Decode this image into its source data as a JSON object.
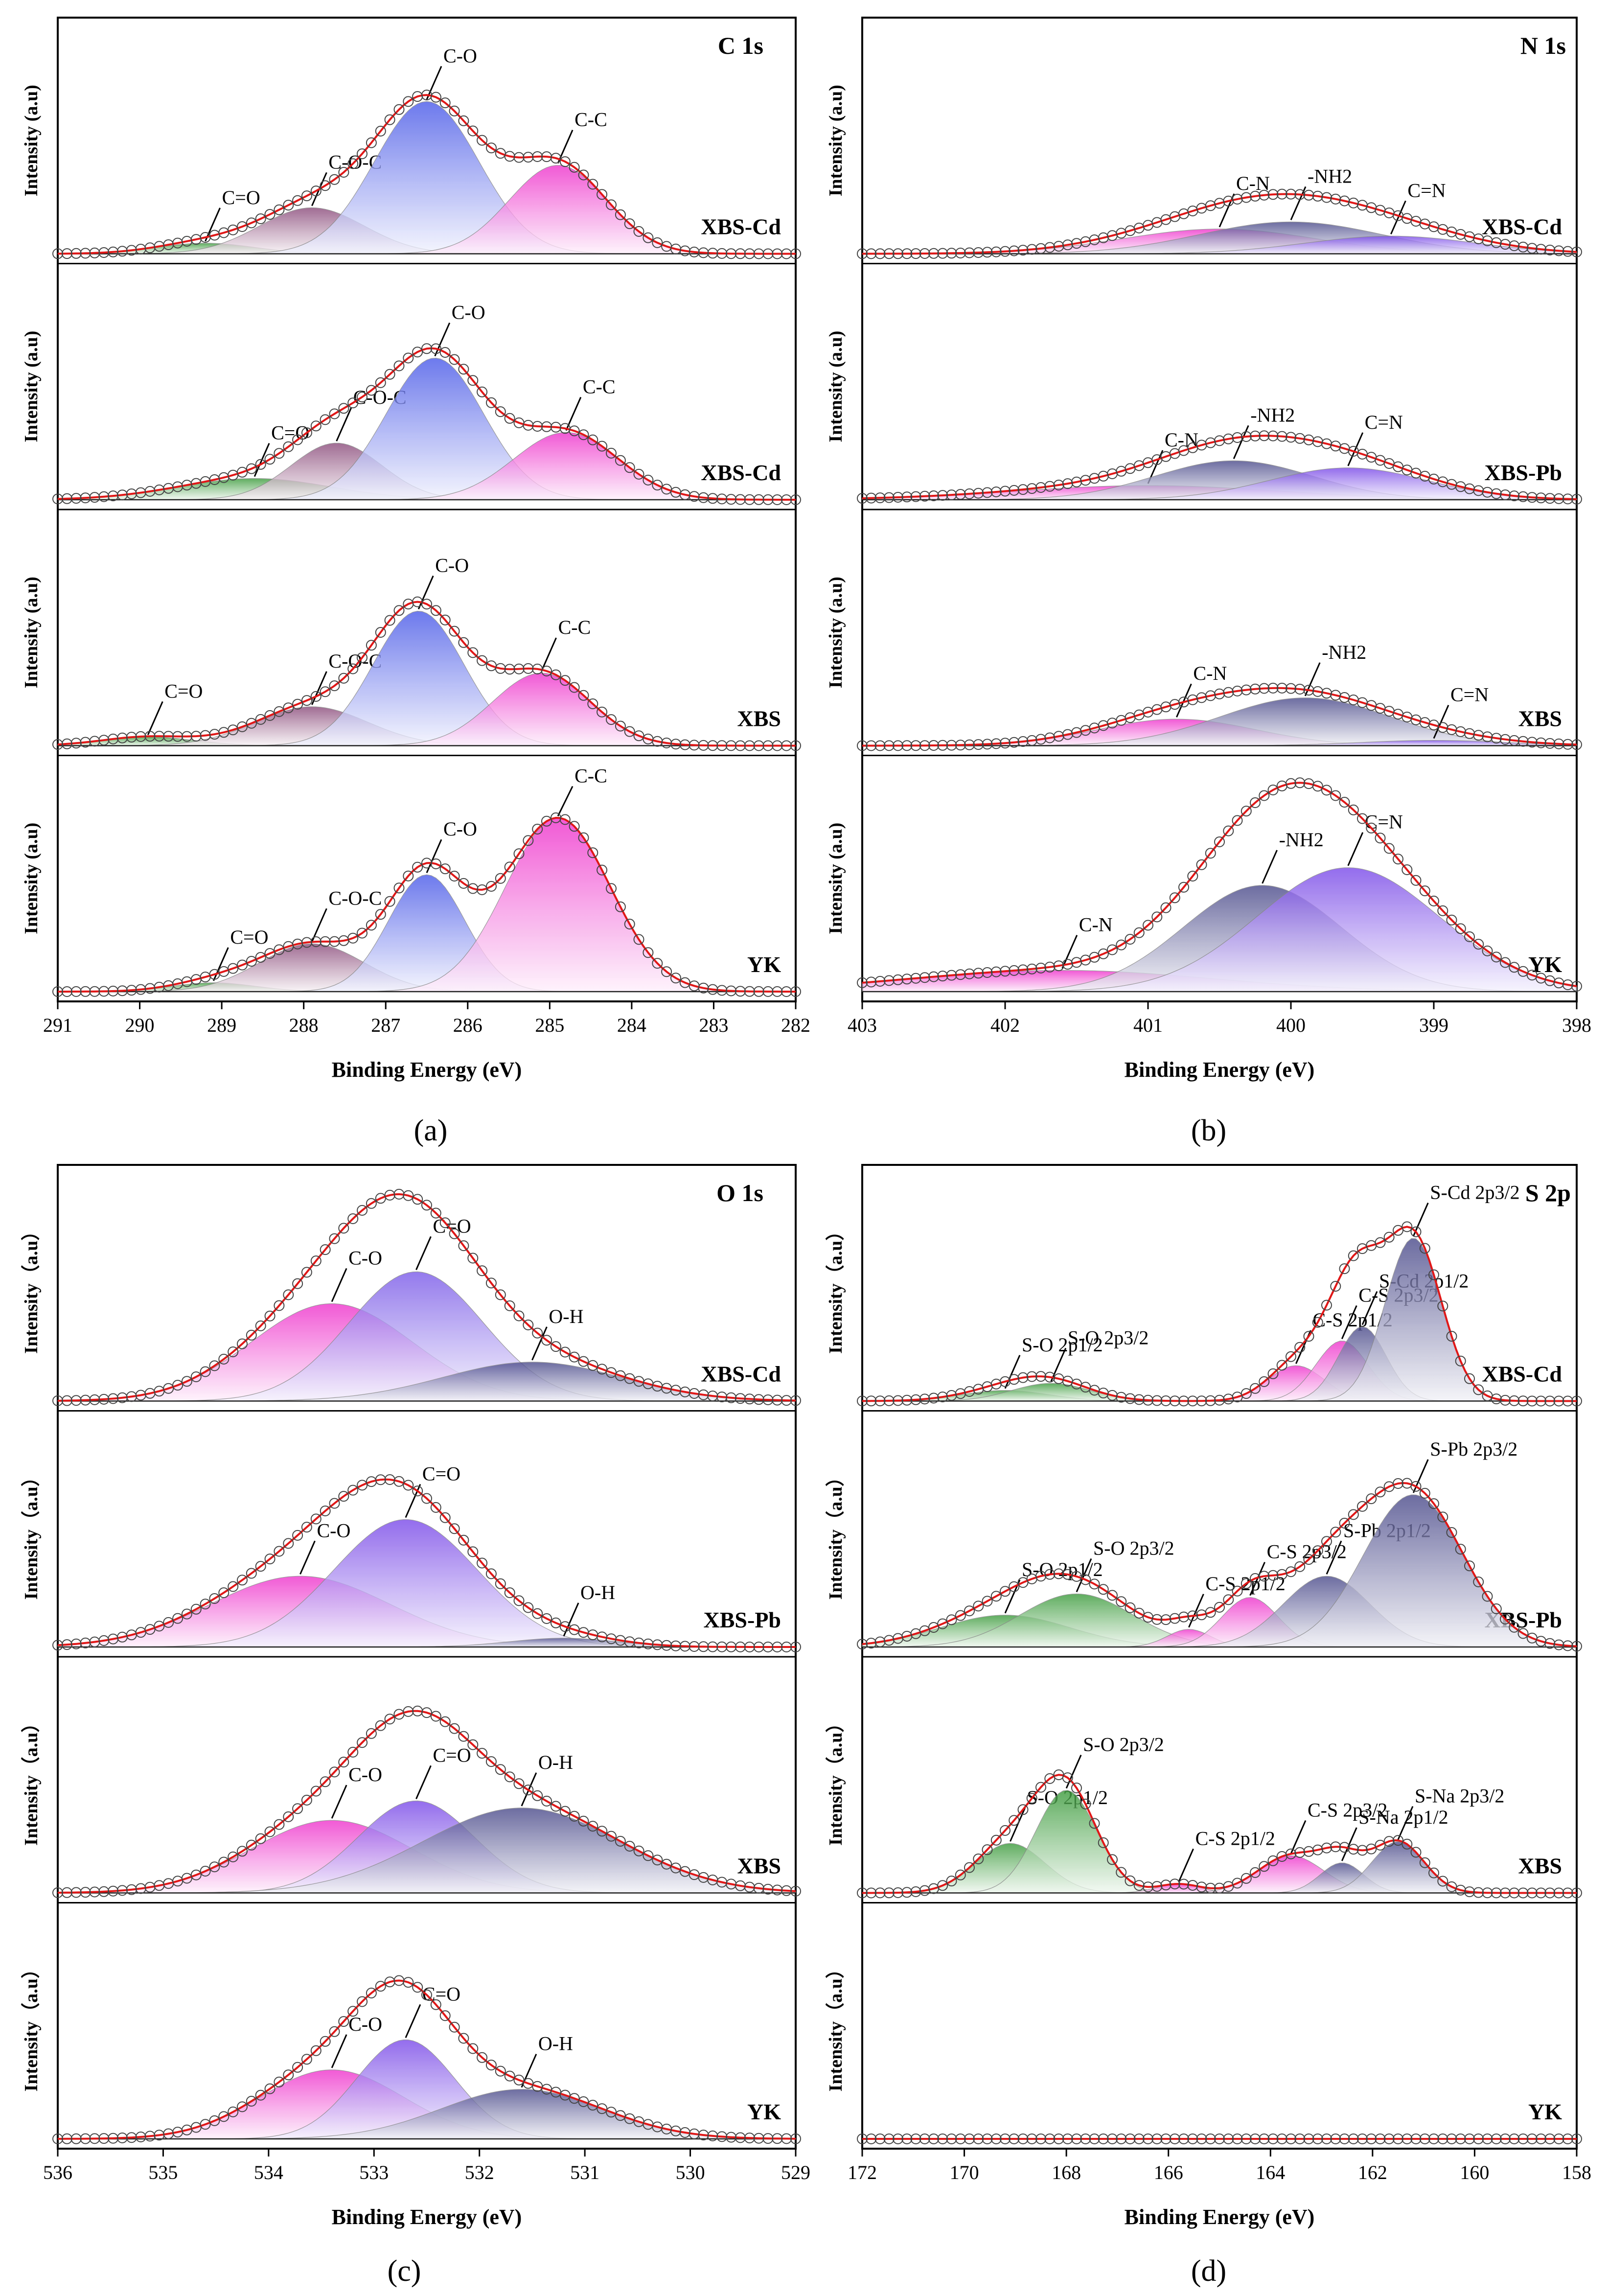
{
  "figure": {
    "panels": [
      {
        "id": "a",
        "label": "(a)",
        "title": "C 1s",
        "xlabel": "Binding Energy (eV)",
        "ylabel": "Intensity (a.u)",
        "x_ticks": [
          "291",
          "290",
          "289",
          "288",
          "287",
          "286",
          "285",
          "284",
          "283",
          "282"
        ]
      },
      {
        "id": "b",
        "label": "(b)",
        "title": "N 1s",
        "xlabel": "Binding Energy (eV)",
        "ylabel": "Intensity (a.u)",
        "x_ticks": [
          "403",
          "402",
          "401",
          "400",
          "399",
          "398"
        ]
      },
      {
        "id": "c",
        "label": "(c)",
        "title": "O 1s",
        "xlabel": "Binding Energy (eV)",
        "ylabel": "Intensity（a.u）",
        "x_ticks": [
          "536",
          "535",
          "534",
          "533",
          "532",
          "531",
          "530",
          "529"
        ]
      },
      {
        "id": "d",
        "label": "(d)",
        "title": "S 2p",
        "xlabel": "Binding Energy (eV)",
        "ylabel": "Intensity（a.u）",
        "x_ticks": [
          "172",
          "170",
          "168",
          "166",
          "164",
          "162",
          "160",
          "158"
        ]
      }
    ]
  },
  "chart_data": [
    {
      "type": "line",
      "panel": "a",
      "title": "C 1s",
      "xlabel": "Binding Energy (eV)",
      "ylabel": "Intensity (a.u)",
      "xlim": [
        291,
        282
      ],
      "x_reversed": true,
      "legend": "none",
      "subplots": [
        {
          "sample": "XBS-Cd",
          "components": [
            {
              "name": "C=O",
              "center": 289.2,
              "height": 0.06,
              "fwhm": 1.4,
              "color": "#3a9a3a"
            },
            {
              "name": "C-O-C",
              "center": 287.9,
              "height": 0.26,
              "fwhm": 1.5,
              "color": "#8a4a7a"
            },
            {
              "name": "C-O",
              "center": 286.5,
              "height": 0.86,
              "fwhm": 1.5,
              "color": "#4a5ae8"
            },
            {
              "name": "C-C",
              "center": 284.9,
              "height": 0.5,
              "fwhm": 1.4,
              "color": "#ee33cc"
            }
          ]
        },
        {
          "sample": "XBS-Cd",
          "components": [
            {
              "name": "C=O",
              "center": 288.6,
              "height": 0.12,
              "fwhm": 2.2,
              "color": "#3a9a3a"
            },
            {
              "name": "C-O-C",
              "center": 287.6,
              "height": 0.32,
              "fwhm": 1.3,
              "color": "#8a4a7a"
            },
            {
              "name": "C-O",
              "center": 286.4,
              "height": 0.8,
              "fwhm": 1.4,
              "color": "#4a5ae8"
            },
            {
              "name": "C-C",
              "center": 284.8,
              "height": 0.38,
              "fwhm": 1.5,
              "color": "#ee33cc"
            }
          ]
        },
        {
          "sample": "XBS",
          "components": [
            {
              "name": "C=O",
              "center": 289.9,
              "height": 0.05,
              "fwhm": 1.3,
              "color": "#3a9a3a"
            },
            {
              "name": "C-O-C",
              "center": 287.9,
              "height": 0.22,
              "fwhm": 1.6,
              "color": "#8a4a7a"
            },
            {
              "name": "C-O",
              "center": 286.6,
              "height": 0.76,
              "fwhm": 1.3,
              "color": "#4a5ae8"
            },
            {
              "name": "C-C",
              "center": 285.1,
              "height": 0.41,
              "fwhm": 1.4,
              "color": "#ee33cc"
            }
          ]
        },
        {
          "sample": "YK",
          "components": [
            {
              "name": "C=O",
              "center": 289.1,
              "height": 0.05,
              "fwhm": 1.2,
              "color": "#3a9a3a"
            },
            {
              "name": "C-O-C",
              "center": 287.9,
              "height": 0.27,
              "fwhm": 1.5,
              "color": "#8a4a7a"
            },
            {
              "name": "C-O",
              "center": 286.5,
              "height": 0.66,
              "fwhm": 1.1,
              "color": "#4a5ae8"
            },
            {
              "name": "C-C",
              "center": 284.9,
              "height": 0.98,
              "fwhm": 1.5,
              "color": "#ee33cc"
            }
          ]
        }
      ]
    },
    {
      "type": "line",
      "panel": "b",
      "title": "N 1s",
      "xlabel": "Binding Energy (eV)",
      "ylabel": "Intensity (a.u)",
      "xlim": [
        403,
        398
      ],
      "x_reversed": true,
      "legend": "none",
      "subplots": [
        {
          "sample": "XBS-Cd",
          "components": [
            {
              "name": "C-N",
              "center": 400.5,
              "height": 0.14,
              "fwhm": 1.6,
              "color": "#ee33cc"
            },
            {
              "name": "-NH2",
              "center": 400.0,
              "height": 0.18,
              "fwhm": 1.5,
              "color": "#4a4a8a"
            },
            {
              "name": "C=N",
              "center": 399.3,
              "height": 0.1,
              "fwhm": 1.4,
              "color": "#7a4ae8"
            }
          ]
        },
        {
          "sample": "XBS-Pb",
          "components": [
            {
              "name": "C-N",
              "center": 401.0,
              "height": 0.08,
              "fwhm": 2.2,
              "color": "#ee33cc"
            },
            {
              "name": "-NH2",
              "center": 400.4,
              "height": 0.22,
              "fwhm": 1.3,
              "color": "#4a4a8a"
            },
            {
              "name": "C=N",
              "center": 399.6,
              "height": 0.18,
              "fwhm": 1.3,
              "color": "#7a4ae8"
            }
          ]
        },
        {
          "sample": "XBS",
          "components": [
            {
              "name": "C-N",
              "center": 400.8,
              "height": 0.15,
              "fwhm": 1.3,
              "color": "#ee33cc"
            },
            {
              "name": "-NH2",
              "center": 399.9,
              "height": 0.27,
              "fwhm": 1.4,
              "color": "#4a4a8a"
            },
            {
              "name": "C=N",
              "center": 399.0,
              "height": 0.03,
              "fwhm": 1.2,
              "color": "#7a4ae8"
            }
          ]
        },
        {
          "sample": "YK",
          "components": [
            {
              "name": "C-N",
              "center": 401.6,
              "height": 0.12,
              "fwhm": 2.5,
              "color": "#ee33cc"
            },
            {
              "name": "-NH2",
              "center": 400.2,
              "height": 0.6,
              "fwhm": 1.3,
              "color": "#4a4a8a"
            },
            {
              "name": "C=N",
              "center": 399.6,
              "height": 0.7,
              "fwhm": 1.5,
              "color": "#7a4ae8"
            }
          ]
        }
      ]
    },
    {
      "type": "line",
      "panel": "c",
      "title": "O 1s",
      "xlabel": "Binding Energy (eV)",
      "ylabel": "Intensity（a.u）",
      "xlim": [
        536,
        529
      ],
      "x_reversed": true,
      "legend": "none",
      "subplots": [
        {
          "sample": "XBS-Cd",
          "components": [
            {
              "name": "C-O",
              "center": 533.4,
              "height": 0.55,
              "fwhm": 1.8,
              "color": "#ee33cc"
            },
            {
              "name": "C=O",
              "center": 532.6,
              "height": 0.73,
              "fwhm": 1.5,
              "color": "#7a5ae8"
            },
            {
              "name": "O-H",
              "center": 531.5,
              "height": 0.22,
              "fwhm": 2.0,
              "color": "#4a4a8a"
            }
          ]
        },
        {
          "sample": "XBS-Pb",
          "components": [
            {
              "name": "C-O",
              "center": 533.7,
              "height": 0.4,
              "fwhm": 2.0,
              "color": "#ee33cc"
            },
            {
              "name": "C=O",
              "center": 532.7,
              "height": 0.72,
              "fwhm": 1.6,
              "color": "#7a4ae8"
            },
            {
              "name": "O-H",
              "center": 531.2,
              "height": 0.05,
              "fwhm": 1.2,
              "color": "#4a4a8a"
            }
          ]
        },
        {
          "sample": "XBS",
          "components": [
            {
              "name": "C-O",
              "center": 533.4,
              "height": 0.41,
              "fwhm": 1.8,
              "color": "#ee33cc"
            },
            {
              "name": "C=O",
              "center": 532.6,
              "height": 0.52,
              "fwhm": 1.3,
              "color": "#7a4ae8"
            },
            {
              "name": "O-H",
              "center": 531.6,
              "height": 0.48,
              "fwhm": 2.2,
              "color": "#4a4a8a"
            }
          ]
        },
        {
          "sample": "YK",
          "components": [
            {
              "name": "C-O",
              "center": 533.4,
              "height": 0.39,
              "fwhm": 1.6,
              "color": "#ee33cc"
            },
            {
              "name": "C=O",
              "center": 532.7,
              "height": 0.56,
              "fwhm": 1.1,
              "color": "#7a4ae8"
            },
            {
              "name": "O-H",
              "center": 531.6,
              "height": 0.28,
              "fwhm": 1.8,
              "color": "#4a4a8a"
            }
          ]
        }
      ]
    },
    {
      "type": "line",
      "panel": "d",
      "title": "S 2p",
      "xlabel": "Binding Energy (eV)",
      "ylabel": "Intensity（a.u）",
      "xlim": [
        172,
        158
      ],
      "x_reversed": true,
      "legend": "none",
      "subplots": [
        {
          "sample": "XBS-Cd",
          "components": [
            {
              "name": "S-O 2p1/2",
              "center": 169.2,
              "height": 0.06,
              "fwhm": 2.0,
              "color": "#3a9a3a"
            },
            {
              "name": "S-O 2p3/2",
              "center": 168.3,
              "height": 0.1,
              "fwhm": 1.8,
              "color": "#3a9a3a"
            },
            {
              "name": "C-S 2p1/2",
              "center": 163.5,
              "height": 0.2,
              "fwhm": 1.3,
              "color": "#ee33cc"
            },
            {
              "name": "C-S 2p3/2",
              "center": 162.6,
              "height": 0.34,
              "fwhm": 1.2,
              "color": "#ee33cc"
            },
            {
              "name": "S-Cd 2p1/2",
              "center": 162.2,
              "height": 0.42,
              "fwhm": 1.1,
              "color": "#4a4a8a"
            },
            {
              "name": "S-Cd 2p3/2",
              "center": 161.2,
              "height": 0.92,
              "fwhm": 1.3,
              "color": "#4a4a8a"
            }
          ]
        },
        {
          "sample": "XBS-Pb",
          "components": [
            {
              "name": "S-O 2p1/2",
              "center": 169.2,
              "height": 0.18,
              "fwhm": 3.0,
              "color": "#3a9a3a"
            },
            {
              "name": "S-O 2p3/2",
              "center": 167.8,
              "height": 0.3,
              "fwhm": 2.6,
              "color": "#3a9a3a"
            },
            {
              "name": "C-S 2p1/2",
              "center": 165.6,
              "height": 0.1,
              "fwhm": 1.0,
              "color": "#ee33cc"
            },
            {
              "name": "C-S 2p3/2",
              "center": 164.4,
              "height": 0.28,
              "fwhm": 1.3,
              "color": "#ee33cc"
            },
            {
              "name": "S-Pb 2p1/2",
              "center": 162.9,
              "height": 0.4,
              "fwhm": 2.0,
              "color": "#4a4a8a"
            },
            {
              "name": "S-Pb 2p3/2",
              "center": 161.2,
              "height": 0.86,
              "fwhm": 2.3,
              "color": "#4a4a8a"
            }
          ]
        },
        {
          "sample": "XBS",
          "components": [
            {
              "name": "S-O 2p1/2",
              "center": 169.1,
              "height": 0.28,
              "fwhm": 1.6,
              "color": "#3a9a3a"
            },
            {
              "name": "S-O 2p3/2",
              "center": 168.0,
              "height": 0.58,
              "fwhm": 1.4,
              "color": "#3a9a3a"
            },
            {
              "name": "C-S 2p1/2",
              "center": 165.8,
              "height": 0.05,
              "fwhm": 1.0,
              "color": "#ee33cc"
            },
            {
              "name": "C-S 2p3/2",
              "center": 163.6,
              "height": 0.21,
              "fwhm": 1.5,
              "color": "#ee33cc"
            },
            {
              "name": "S-Na 2p1/2",
              "center": 162.6,
              "height": 0.17,
              "fwhm": 1.0,
              "color": "#4a4a8a"
            },
            {
              "name": "S-Na 2p3/2",
              "center": 161.5,
              "height": 0.29,
              "fwhm": 1.2,
              "color": "#4a4a8a"
            }
          ]
        },
        {
          "sample": "YK",
          "components": []
        }
      ]
    }
  ]
}
